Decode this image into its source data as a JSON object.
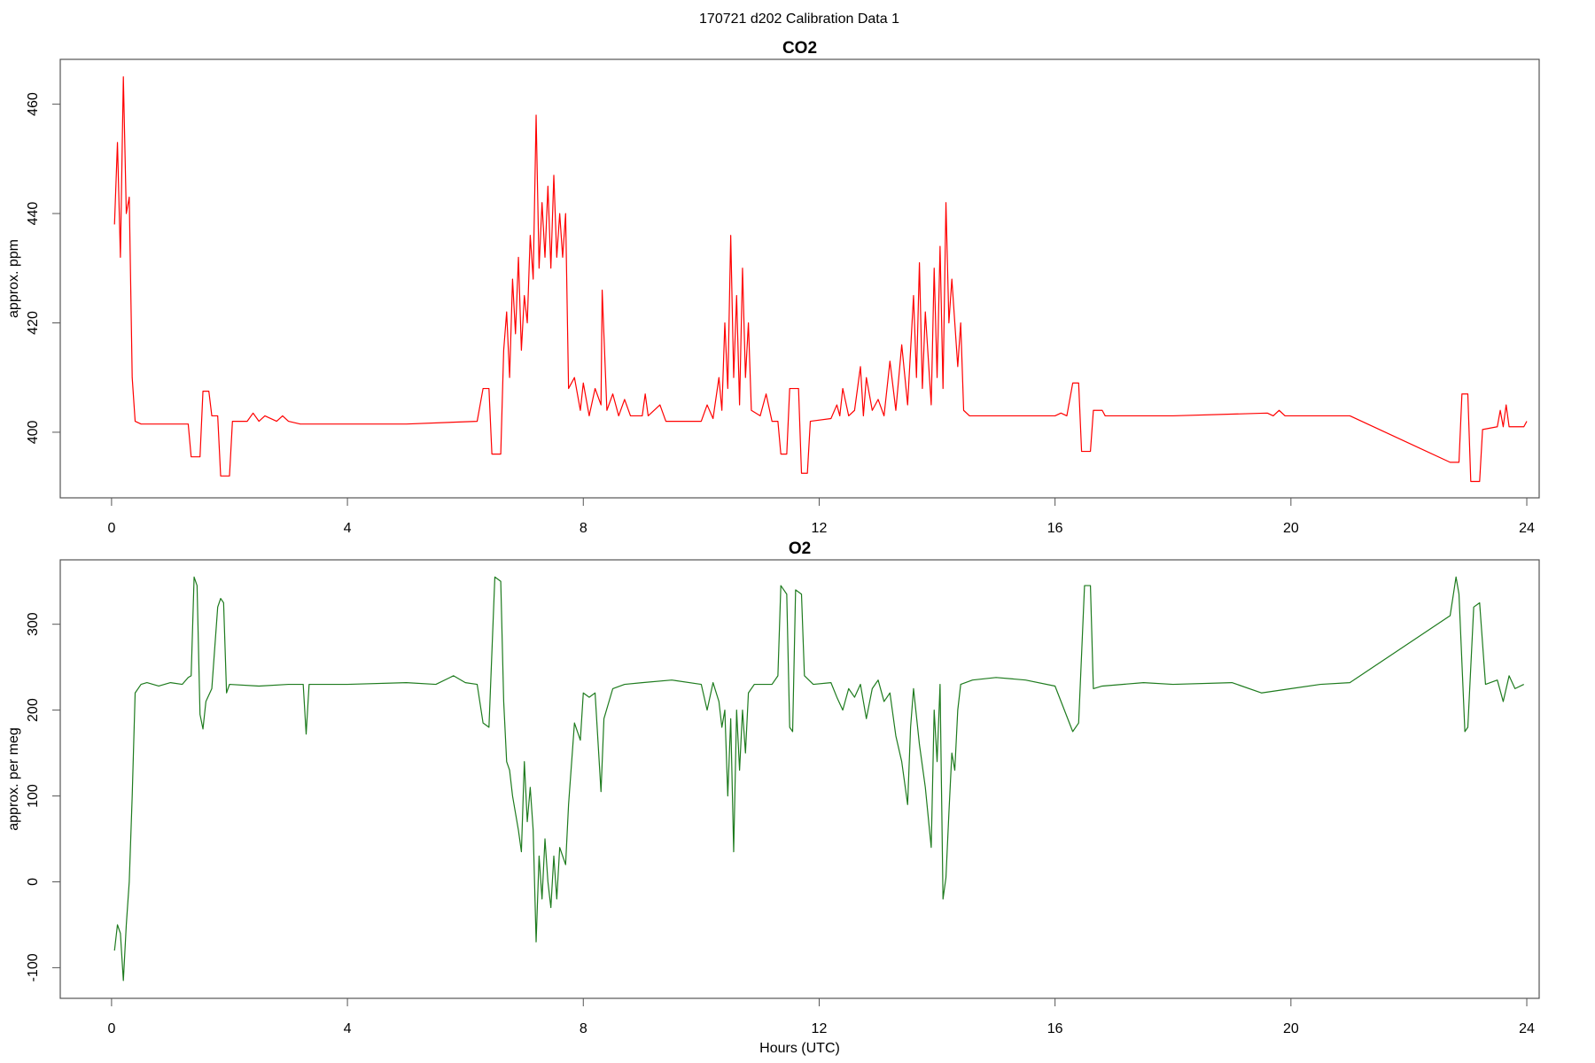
{
  "title": "170721   d202   Calibration Data 1",
  "chart_data": [
    {
      "type": "line",
      "title": "CO2",
      "ylabel": "approx. ppm",
      "color": "#ff0000",
      "xlim": [
        -0.87,
        24.21
      ],
      "ylim": [
        388,
        468.2
      ],
      "xticks": [
        0,
        4,
        8,
        12,
        16,
        20,
        24
      ],
      "yticks": [
        400,
        420,
        440,
        460
      ],
      "x": [
        0.05,
        0.1,
        0.15,
        0.2,
        0.25,
        0.3,
        0.35,
        0.4,
        0.5,
        1.3,
        1.35,
        1.5,
        1.55,
        1.65,
        1.7,
        1.8,
        1.85,
        2.0,
        2.05,
        2.3,
        2.4,
        2.5,
        2.6,
        2.8,
        2.9,
        3.0,
        3.2,
        5.0,
        6.2,
        6.3,
        6.4,
        6.45,
        6.6,
        6.65,
        6.7,
        6.75,
        6.8,
        6.85,
        6.9,
        6.95,
        7.0,
        7.05,
        7.1,
        7.15,
        7.2,
        7.25,
        7.3,
        7.35,
        7.4,
        7.45,
        7.5,
        7.55,
        7.6,
        7.65,
        7.7,
        7.75,
        7.85,
        7.95,
        8.0,
        8.1,
        8.2,
        8.3,
        8.32,
        8.4,
        8.5,
        8.6,
        8.7,
        8.8,
        9.0,
        9.05,
        9.1,
        9.3,
        9.4,
        10.0,
        10.1,
        10.2,
        10.3,
        10.35,
        10.4,
        10.45,
        10.5,
        10.55,
        10.6,
        10.65,
        10.7,
        10.75,
        10.8,
        10.85,
        11.0,
        11.1,
        11.2,
        11.3,
        11.35,
        11.45,
        11.5,
        11.65,
        11.7,
        11.8,
        11.85,
        12.2,
        12.3,
        12.35,
        12.4,
        12.5,
        12.6,
        12.7,
        12.75,
        12.8,
        12.9,
        13.0,
        13.1,
        13.2,
        13.3,
        13.4,
        13.5,
        13.6,
        13.65,
        13.7,
        13.75,
        13.8,
        13.9,
        13.95,
        14.0,
        14.05,
        14.1,
        14.15,
        14.2,
        14.25,
        14.3,
        14.35,
        14.4,
        14.45,
        14.55,
        16.0,
        16.1,
        16.2,
        16.3,
        16.4,
        16.45,
        16.6,
        16.65,
        16.8,
        16.85,
        18.0,
        19.6,
        19.7,
        19.8,
        19.9,
        21.0,
        22.7,
        22.85,
        22.9,
        23.0,
        23.05,
        23.2,
        23.25,
        23.5,
        23.55,
        23.6,
        23.65,
        23.7,
        23.95,
        24.0
      ],
      "values": [
        438,
        453,
        432,
        465,
        440,
        443,
        410,
        402,
        401.5,
        401.5,
        395.5,
        395.5,
        407.5,
        407.5,
        403,
        403,
        392,
        392,
        402,
        402,
        403.5,
        402,
        403,
        402,
        403,
        402,
        401.5,
        401.5,
        402,
        408,
        408,
        396,
        396,
        415,
        422,
        410,
        428,
        418,
        432,
        415,
        425,
        420,
        436,
        428,
        458,
        430,
        442,
        432,
        445,
        430,
        447,
        432,
        440,
        432,
        440,
        408,
        410,
        404,
        409,
        403,
        408,
        405,
        426,
        404,
        407,
        403,
        406,
        403,
        403,
        407,
        403,
        405,
        402,
        402,
        405,
        402.5,
        410,
        404,
        420,
        408,
        436,
        410,
        425,
        405,
        430,
        410,
        420,
        404,
        403,
        407,
        402,
        402,
        396,
        396,
        408,
        408,
        392.5,
        392.5,
        402,
        402.5,
        405,
        403,
        408,
        403,
        404,
        412,
        403,
        410,
        404,
        406,
        403,
        413,
        404,
        416,
        405,
        425,
        410,
        431,
        408,
        422,
        405,
        430,
        410,
        434,
        408,
        442,
        420,
        428,
        420,
        412,
        420,
        404,
        403,
        403,
        403.5,
        403,
        409,
        409,
        396.5,
        396.5,
        404,
        404,
        403,
        403,
        403.5,
        403,
        404,
        403,
        403,
        394.5,
        394.5,
        407,
        407,
        391,
        391,
        400.5,
        401,
        404,
        401,
        405,
        401,
        401,
        402
      ]
    },
    {
      "type": "line",
      "title": "O2",
      "ylabel": "approx. per meg",
      "xlabel": "Hours (UTC)",
      "color": "#1e7b1e",
      "xlim": [
        -0.87,
        24.21
      ],
      "ylim": [
        -135.7,
        375
      ],
      "xticks": [
        0,
        4,
        8,
        12,
        16,
        20,
        24
      ],
      "yticks": [
        -100,
        0,
        100,
        200,
        300
      ],
      "x": [
        0.05,
        0.1,
        0.15,
        0.2,
        0.25,
        0.3,
        0.35,
        0.4,
        0.5,
        0.6,
        0.8,
        1.0,
        1.2,
        1.3,
        1.35,
        1.4,
        1.45,
        1.5,
        1.55,
        1.6,
        1.7,
        1.8,
        1.85,
        1.9,
        1.95,
        2.0,
        2.5,
        3.0,
        3.25,
        3.3,
        3.35,
        4.0,
        5.0,
        5.5,
        5.8,
        6.0,
        6.2,
        6.3,
        6.4,
        6.5,
        6.6,
        6.65,
        6.7,
        6.75,
        6.8,
        6.9,
        6.95,
        7.0,
        7.05,
        7.1,
        7.15,
        7.2,
        7.25,
        7.3,
        7.35,
        7.4,
        7.45,
        7.5,
        7.55,
        7.6,
        7.7,
        7.75,
        7.85,
        7.95,
        8.0,
        8.1,
        8.2,
        8.3,
        8.35,
        8.5,
        8.7,
        9.0,
        9.5,
        10.0,
        10.1,
        10.2,
        10.3,
        10.35,
        10.4,
        10.45,
        10.5,
        10.55,
        10.6,
        10.65,
        10.7,
        10.75,
        10.8,
        10.9,
        11.2,
        11.3,
        11.35,
        11.45,
        11.5,
        11.55,
        11.6,
        11.7,
        11.75,
        11.9,
        12.2,
        12.3,
        12.4,
        12.5,
        12.6,
        12.7,
        12.8,
        12.9,
        13.0,
        13.1,
        13.2,
        13.3,
        13.4,
        13.5,
        13.55,
        13.6,
        13.7,
        13.8,
        13.9,
        13.95,
        14.0,
        14.05,
        14.1,
        14.15,
        14.2,
        14.25,
        14.3,
        14.35,
        14.4,
        14.6,
        15.0,
        15.5,
        16.0,
        16.3,
        16.4,
        16.5,
        16.6,
        16.65,
        16.8,
        17.5,
        18.0,
        19.0,
        19.5,
        20.0,
        20.5,
        21.0,
        22.7,
        22.8,
        22.85,
        22.95,
        23.0,
        23.1,
        23.2,
        23.3,
        23.5,
        23.6,
        23.7,
        23.8,
        23.95
      ],
      "values": [
        -80,
        -50,
        -60,
        -115,
        -50,
        0,
        100,
        220,
        230,
        232,
        228,
        232,
        230,
        238,
        240,
        355,
        345,
        195,
        178,
        210,
        225,
        320,
        330,
        325,
        220,
        230,
        228,
        230,
        230,
        172,
        230,
        230,
        232,
        230,
        240,
        232,
        230,
        185,
        180,
        355,
        350,
        210,
        140,
        130,
        100,
        60,
        35,
        140,
        70,
        110,
        60,
        -70,
        30,
        -20,
        50,
        0,
        -30,
        30,
        -20,
        40,
        20,
        90,
        185,
        165,
        220,
        215,
        220,
        105,
        190,
        225,
        230,
        232,
        235,
        230,
        200,
        232,
        210,
        180,
        200,
        100,
        190,
        35,
        200,
        130,
        200,
        150,
        220,
        230,
        230,
        240,
        345,
        335,
        180,
        175,
        340,
        335,
        240,
        230,
        232,
        215,
        200,
        225,
        215,
        230,
        190,
        225,
        235,
        210,
        220,
        170,
        140,
        90,
        180,
        225,
        160,
        110,
        40,
        200,
        140,
        230,
        -20,
        5,
        80,
        150,
        130,
        200,
        230,
        235,
        238,
        235,
        228,
        175,
        185,
        345,
        345,
        225,
        228,
        232,
        230,
        232,
        220,
        225,
        230,
        232,
        310,
        355,
        335,
        175,
        180,
        320,
        325,
        230,
        235,
        210,
        240,
        225,
        230
      ]
    }
  ]
}
